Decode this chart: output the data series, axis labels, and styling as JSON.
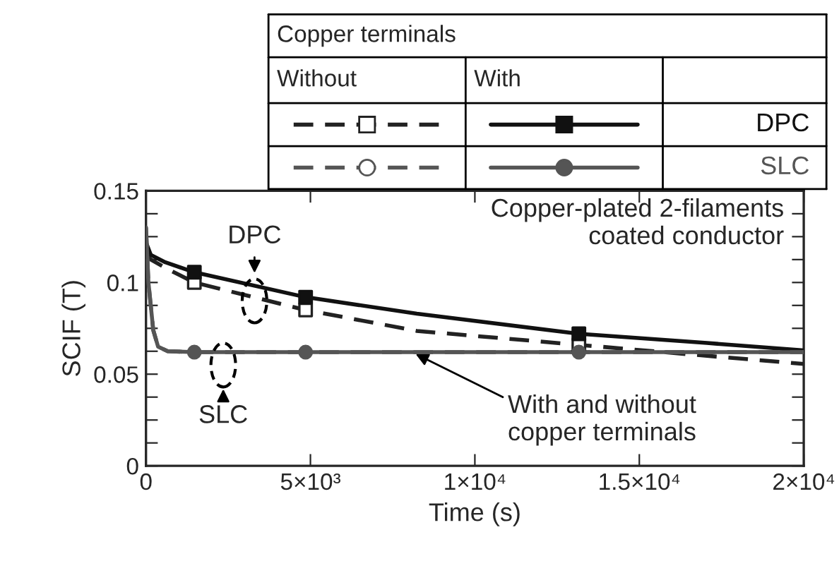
{
  "chart_data": {
    "type": "line",
    "xlabel": "Time (s)",
    "ylabel": "SCIF (T)",
    "legend_title": "Copper terminals",
    "xlim": [
      0,
      20000
    ],
    "xticks": [
      0,
      {
        "value": 5000,
        "label": "5×10³"
      },
      {
        "value": 10000,
        "label": "1×10⁴"
      },
      {
        "value": 15000,
        "label": "1.5×10⁴"
      },
      {
        "value": 20000,
        "label": "2×10⁴"
      }
    ],
    "ylim": [
      0,
      0.15
    ],
    "yticks": [
      0,
      {
        "value": 0.0125,
        "label": null
      },
      {
        "value": 0.025,
        "label": null
      },
      {
        "value": 0.0375,
        "label": null
      },
      0.05,
      {
        "value": 0.0625,
        "label": null
      },
      {
        "value": 0.075,
        "label": null
      },
      {
        "value": 0.0875,
        "label": null
      },
      0.1,
      {
        "value": 0.1125,
        "label": null
      },
      {
        "value": 0.125,
        "label": null
      },
      {
        "value": 0.1375,
        "label": null
      },
      0.15
    ],
    "grid": false,
    "legend": "top right",
    "series": [
      {
        "color": "#222222",
        "line_style": "dashed",
        "x": [
          0,
          147,
          588,
          1470,
          4853,
          8235,
          13162,
          17059,
          20000
        ],
        "values": [
          0.115,
          0.1125,
          0.108,
          0.1,
          0.085,
          0.0736,
          0.066,
          0.06,
          0.0556
        ]
      },
      {
        "type": "scatter",
        "marker": "square",
        "color": "#ffffff",
        "x": [
          1470,
          4853,
          13162
        ],
        "values": [
          0.1,
          0.085,
          0.066
        ]
      },
      {
        "name": "DPC",
        "color": "#111111",
        "line_style": "solid",
        "x": [
          0,
          147,
          588,
          1470,
          4853,
          8235,
          13162,
          17059,
          20000
        ],
        "values": [
          0.122,
          0.115,
          0.111,
          0.1056,
          0.092,
          0.083,
          0.072,
          0.067,
          0.063
        ]
      },
      {
        "type": "scatter",
        "marker": "square",
        "color": "#111111",
        "x": [
          1470,
          4853,
          13162
        ],
        "values": [
          0.1056,
          0.092,
          0.072
        ]
      },
      {
        "color": "#555555",
        "line_style": "dashed",
        "x": [
          0,
          74,
          221,
          368,
          662,
          1470,
          4853,
          13162,
          20000
        ],
        "values": [
          0.13,
          0.1,
          0.074,
          0.065,
          0.0625,
          0.062,
          0.062,
          0.062,
          0.062
        ]
      },
      {
        "type": "scatter",
        "marker": "circle",
        "color": "#ffffff"
      },
      {
        "name": "SLC",
        "color": "#555555",
        "line_style": "solid",
        "x": [
          0,
          74,
          221,
          368,
          662,
          1470,
          4853,
          13162,
          20000
        ],
        "values": [
          0.13,
          0.1,
          0.074,
          0.065,
          0.0625,
          0.062,
          0.062,
          0.062,
          0.062
        ]
      },
      {
        "type": "scatter",
        "marker": "circle",
        "color": "#555555",
        "x": [
          1470,
          4853,
          13162
        ],
        "values": [
          0.062,
          0.062,
          0.062
        ]
      }
    ],
    "annotations": [
      "Without",
      "With",
      {
        "text": "DPC",
        "x": 3300,
        "y": 0.09
      },
      {
        "text": "SLC",
        "x": 2350,
        "y": 0.055
      },
      "Copper-plated 2-filaments\ncoated conductor",
      {
        "text": "With and without\ncopper terminals",
        "x": 8090,
        "y": 0.062
      }
    ]
  }
}
